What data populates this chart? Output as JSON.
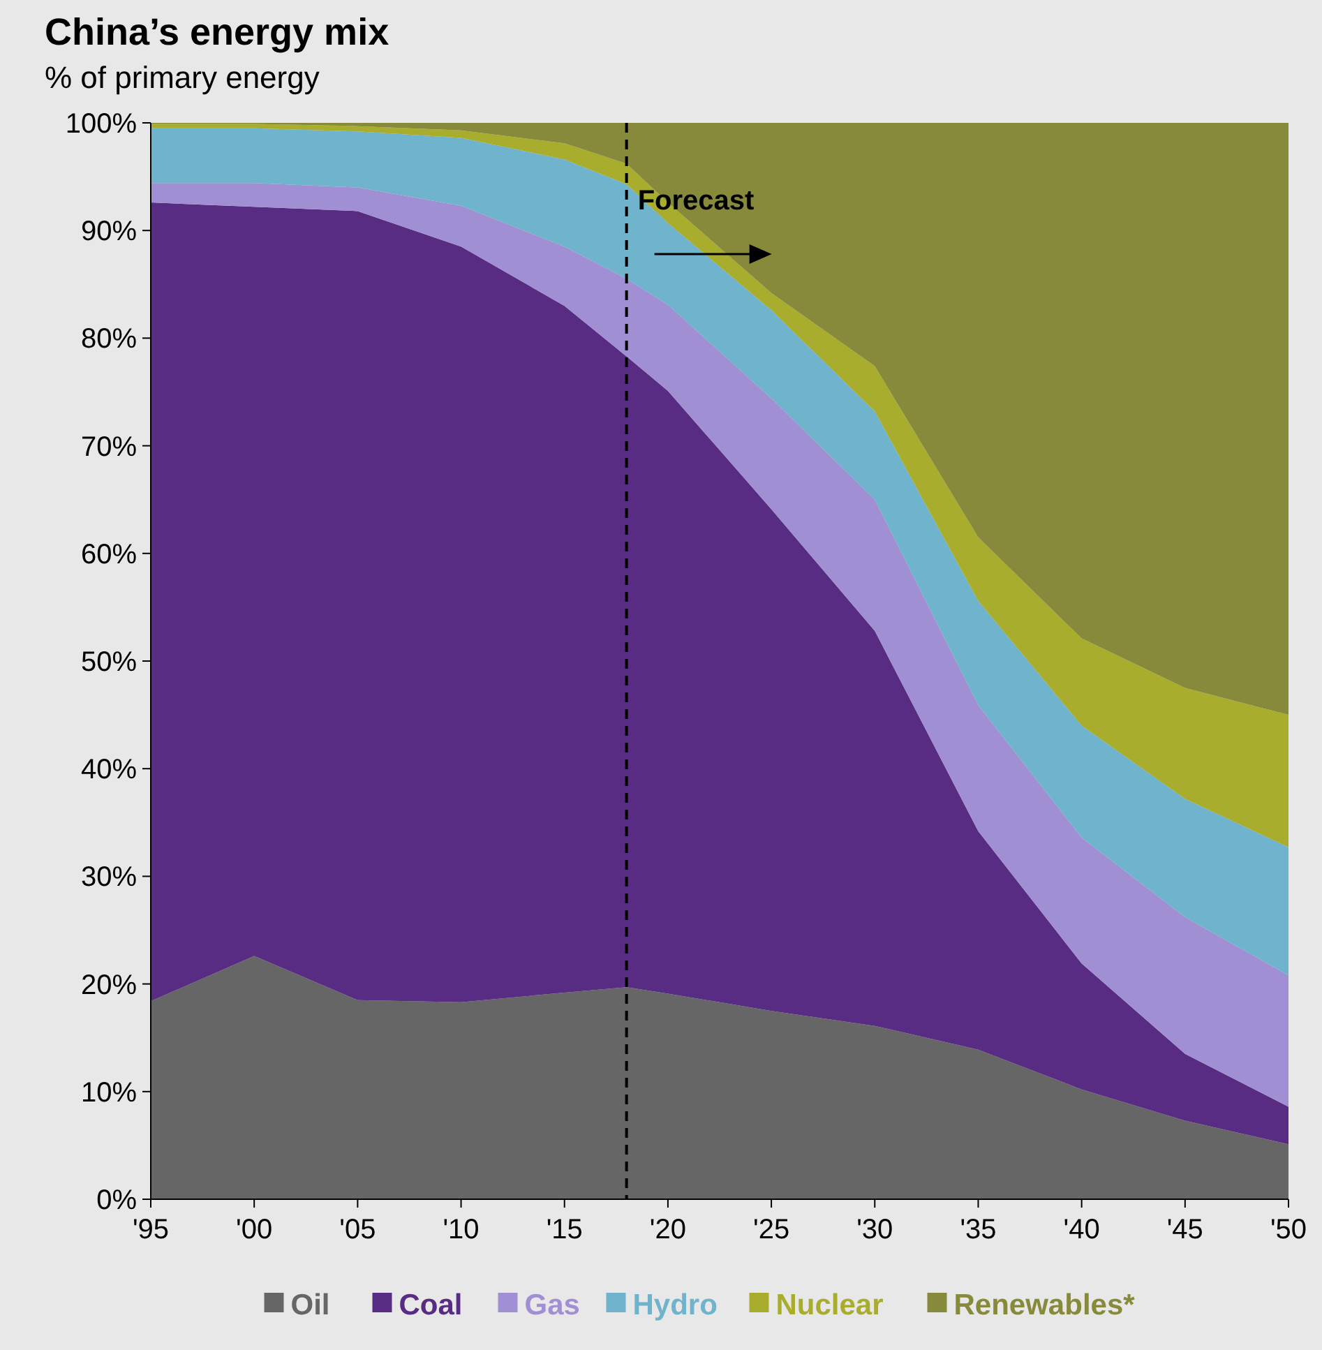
{
  "chart_data": {
    "type": "area",
    "stacked": true,
    "title": "China’s energy mix",
    "subtitle": "% of primary energy",
    "x": [
      1995,
      2000,
      2005,
      2010,
      2015,
      2018,
      2020,
      2025,
      2030,
      2035,
      2040,
      2045,
      2050
    ],
    "xlim": [
      1995,
      2050
    ],
    "xticks": [
      {
        "value": 1995,
        "label": "'95"
      },
      {
        "value": 2000,
        "label": "'00"
      },
      {
        "value": 2005,
        "label": "'05"
      },
      {
        "value": 2010,
        "label": "'10"
      },
      {
        "value": 2015,
        "label": "'15"
      },
      {
        "value": 2020,
        "label": "'20"
      },
      {
        "value": 2025,
        "label": "'25"
      },
      {
        "value": 2030,
        "label": "'30"
      },
      {
        "value": 2035,
        "label": "'35"
      },
      {
        "value": 2040,
        "label": "'40"
      },
      {
        "value": 2045,
        "label": "'45"
      },
      {
        "value": 2050,
        "label": "'50"
      }
    ],
    "ylim": [
      0,
      100
    ],
    "yticks": [
      {
        "value": 0,
        "label": "0%"
      },
      {
        "value": 10,
        "label": "10%"
      },
      {
        "value": 20,
        "label": "20%"
      },
      {
        "value": 30,
        "label": "30%"
      },
      {
        "value": 40,
        "label": "40%"
      },
      {
        "value": 50,
        "label": "50%"
      },
      {
        "value": 60,
        "label": "60%"
      },
      {
        "value": 70,
        "label": "70%"
      },
      {
        "value": 80,
        "label": "80%"
      },
      {
        "value": 90,
        "label": "90%"
      },
      {
        "value": 100,
        "label": "100%"
      }
    ],
    "series": [
      {
        "name": "Oil",
        "color": "#666666",
        "values": [
          18.4,
          22.6,
          18.5,
          18.3,
          19.2,
          19.7,
          19.1,
          17.5,
          16.1,
          13.9,
          10.2,
          7.3,
          5.1
        ]
      },
      {
        "name": "Coal",
        "color": "#582c83",
        "values": [
          74.2,
          69.6,
          73.3,
          70.2,
          63.8,
          58.6,
          56.0,
          46.6,
          36.7,
          20.3,
          11.7,
          6.2,
          3.5
        ]
      },
      {
        "name": "Gas",
        "color": "#a08fd3",
        "values": [
          1.8,
          2.2,
          2.2,
          3.8,
          5.5,
          7.2,
          8.0,
          10.3,
          12.2,
          11.7,
          11.7,
          12.7,
          12.2
        ]
      },
      {
        "name": "Hydro",
        "color": "#6fb3cc",
        "values": [
          5.1,
          5.1,
          5.2,
          6.3,
          8.1,
          8.8,
          7.6,
          8.2,
          8.2,
          9.7,
          10.4,
          11.0,
          11.9
        ]
      },
      {
        "name": "Nuclear",
        "color": "#a8ad2e",
        "values": [
          0.4,
          0.4,
          0.5,
          0.7,
          1.5,
          1.9,
          1.9,
          1.6,
          4.2,
          5.9,
          8.1,
          10.3,
          12.3
        ]
      },
      {
        "name": "Renewables*",
        "color": "#878a3a",
        "values": [
          0.1,
          0.1,
          0.3,
          0.7,
          1.9,
          3.8,
          7.4,
          15.8,
          22.6,
          38.5,
          47.9,
          52.5,
          55.0
        ]
      }
    ],
    "ref_lines": [
      {
        "axis": "x",
        "value": 2018,
        "color": "#000000",
        "line_style": "dashed"
      }
    ],
    "annotations": [
      "Forecast"
    ],
    "legend": "bottom",
    "grid": false
  }
}
